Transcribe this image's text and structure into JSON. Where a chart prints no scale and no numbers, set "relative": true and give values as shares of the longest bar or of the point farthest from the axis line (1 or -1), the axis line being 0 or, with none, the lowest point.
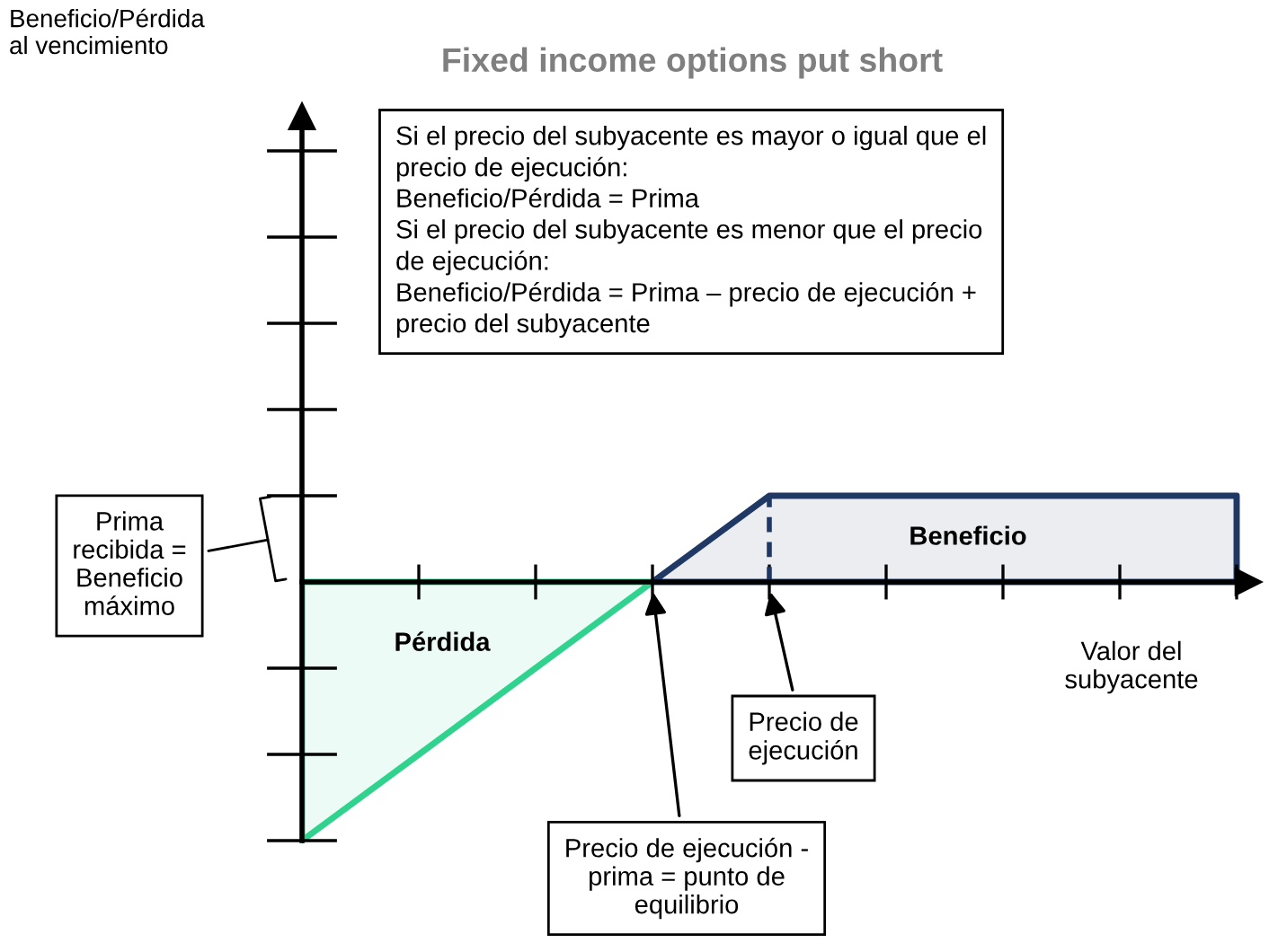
{
  "chart_data": {
    "type": "area",
    "relative": true,
    "title": "Fixed income options put short",
    "xlabel": "Valor del\nsubyacente",
    "categories": [
      null,
      null,
      null,
      null,
      null,
      null,
      null,
      null,
      null
    ],
    "series": [
      {
        "color": "#2fd38d",
        "values": [
          -1,
          -0.667,
          -0.333,
          0,
          null,
          null,
          null,
          null,
          null
        ]
      },
      {
        "color": "#1f3864",
        "values": [
          null,
          null,
          null,
          0,
          0.333,
          0.333,
          0.333,
          0.333,
          0.333
        ]
      }
    ],
    "annotations": [
      "Beneficio/Pérdida\nal vencimiento",
      "Si el precio del subyacente es mayor o igual que el\nprecio de ejecución:\nBeneficio/Pérdida = Prima\nSi el precio del subyacente es menor que el precio\nde ejecución:\nBeneficio/Pérdida = Prima – precio de ejecución +\nprecio del subyacente",
      "Prima\nrecibida =\nBeneficio\nmáximo",
      "Pérdida",
      "Beneficio",
      "Precio de\nejecución",
      "Precio de ejecución -\nprima = punto de\nequilibrio"
    ],
    "grid": false
  }
}
